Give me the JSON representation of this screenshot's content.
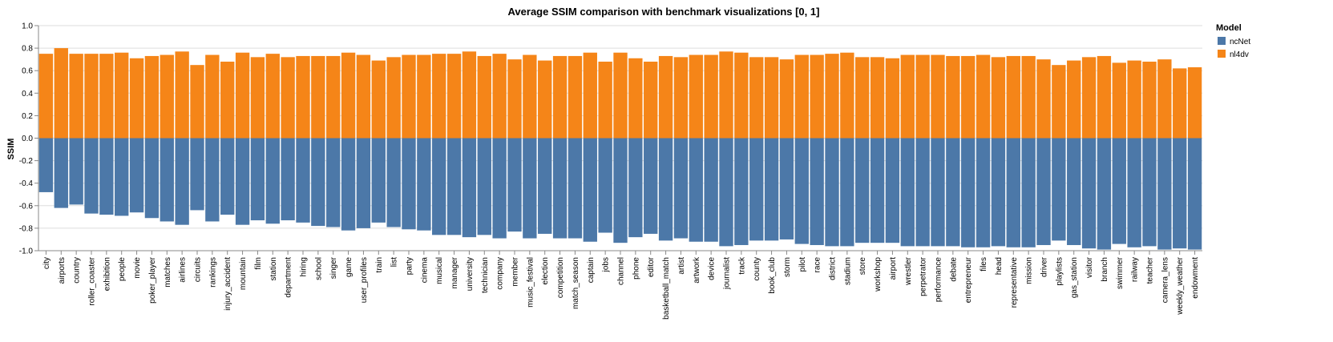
{
  "chart_data": {
    "type": "bar",
    "title": "Average SSIM comparison with benchmark visualizations [0, 1]",
    "xlabel": "",
    "ylabel": "SSIM",
    "ylim": [
      -1.0,
      1.0
    ],
    "yticks": [
      "1.0",
      "0.8",
      "0.6",
      "0.4",
      "0.2",
      "0.0",
      "-0.2",
      "-0.4",
      "-0.6",
      "-0.8",
      "-1.0"
    ],
    "grid": true,
    "legend": {
      "title": "Model",
      "position": "top-right"
    },
    "categories": [
      "city",
      "airports",
      "country",
      "roller_coaster",
      "exhibition",
      "people",
      "movie",
      "poker_player",
      "matches",
      "airlines",
      "circuits",
      "rankings",
      "injury_accident",
      "mountain",
      "film",
      "station",
      "department",
      "hiring",
      "school",
      "singer",
      "game",
      "user_profiles",
      "train",
      "list",
      "party",
      "cinema",
      "musical",
      "manager",
      "university",
      "technician",
      "company",
      "member",
      "music_festival",
      "election",
      "competition",
      "match_season",
      "captain",
      "jobs",
      "channel",
      "phone",
      "editor",
      "basketball_match",
      "artist",
      "artwork",
      "device",
      "journalist",
      "track",
      "county",
      "book_club",
      "storm",
      "pilot",
      "race",
      "district",
      "stadium",
      "store",
      "workshop",
      "airport",
      "wrestler",
      "perpetrator",
      "performance",
      "debate",
      "entrepreneur",
      "files",
      "head",
      "representative",
      "mission",
      "driver",
      "playlists",
      "gas_station",
      "visitor",
      "branch",
      "swimmer",
      "railway",
      "teacher",
      "camera_lens",
      "weekly_weather",
      "endowment"
    ],
    "series": [
      {
        "name": "ncNet",
        "color": "#4c78a8",
        "values": [
          -0.48,
          -0.62,
          -0.59,
          -0.67,
          -0.68,
          -0.69,
          -0.66,
          -0.71,
          -0.74,
          -0.77,
          -0.64,
          -0.74,
          -0.68,
          -0.77,
          -0.73,
          -0.76,
          -0.73,
          -0.75,
          -0.78,
          -0.79,
          -0.82,
          -0.8,
          -0.75,
          -0.79,
          -0.81,
          -0.82,
          -0.86,
          -0.86,
          -0.88,
          -0.86,
          -0.89,
          -0.83,
          -0.89,
          -0.85,
          -0.89,
          -0.89,
          -0.92,
          -0.84,
          -0.93,
          -0.88,
          -0.85,
          -0.91,
          -0.89,
          -0.92,
          -0.92,
          -0.96,
          -0.95,
          -0.91,
          -0.91,
          -0.9,
          -0.94,
          -0.95,
          -0.96,
          -0.96,
          -0.93,
          -0.93,
          -0.93,
          -0.96,
          -0.96,
          -0.96,
          -0.96,
          -0.97,
          -0.97,
          -0.96,
          -0.97,
          -0.97,
          -0.95,
          -0.91,
          -0.95,
          -0.98,
          -0.99,
          -0.94,
          -0.97,
          -0.96,
          -0.99,
          -0.98,
          -0.99
        ]
      },
      {
        "name": "nl4dv",
        "color": "#f58518",
        "values": [
          0.75,
          0.8,
          0.75,
          0.75,
          0.75,
          0.76,
          0.71,
          0.73,
          0.74,
          0.77,
          0.65,
          0.74,
          0.68,
          0.76,
          0.72,
          0.75,
          0.72,
          0.73,
          0.73,
          0.73,
          0.76,
          0.74,
          0.69,
          0.72,
          0.74,
          0.74,
          0.75,
          0.75,
          0.77,
          0.73,
          0.75,
          0.7,
          0.74,
          0.69,
          0.73,
          0.73,
          0.76,
          0.68,
          0.76,
          0.71,
          0.68,
          0.73,
          0.72,
          0.74,
          0.74,
          0.77,
          0.76,
          0.72,
          0.72,
          0.7,
          0.74,
          0.74,
          0.75,
          0.76,
          0.72,
          0.72,
          0.71,
          0.74,
          0.74,
          0.74,
          0.73,
          0.73,
          0.74,
          0.72,
          0.73,
          0.73,
          0.7,
          0.65,
          0.69,
          0.72,
          0.73,
          0.67,
          0.69,
          0.68,
          0.7,
          0.62,
          0.63
        ]
      }
    ]
  }
}
